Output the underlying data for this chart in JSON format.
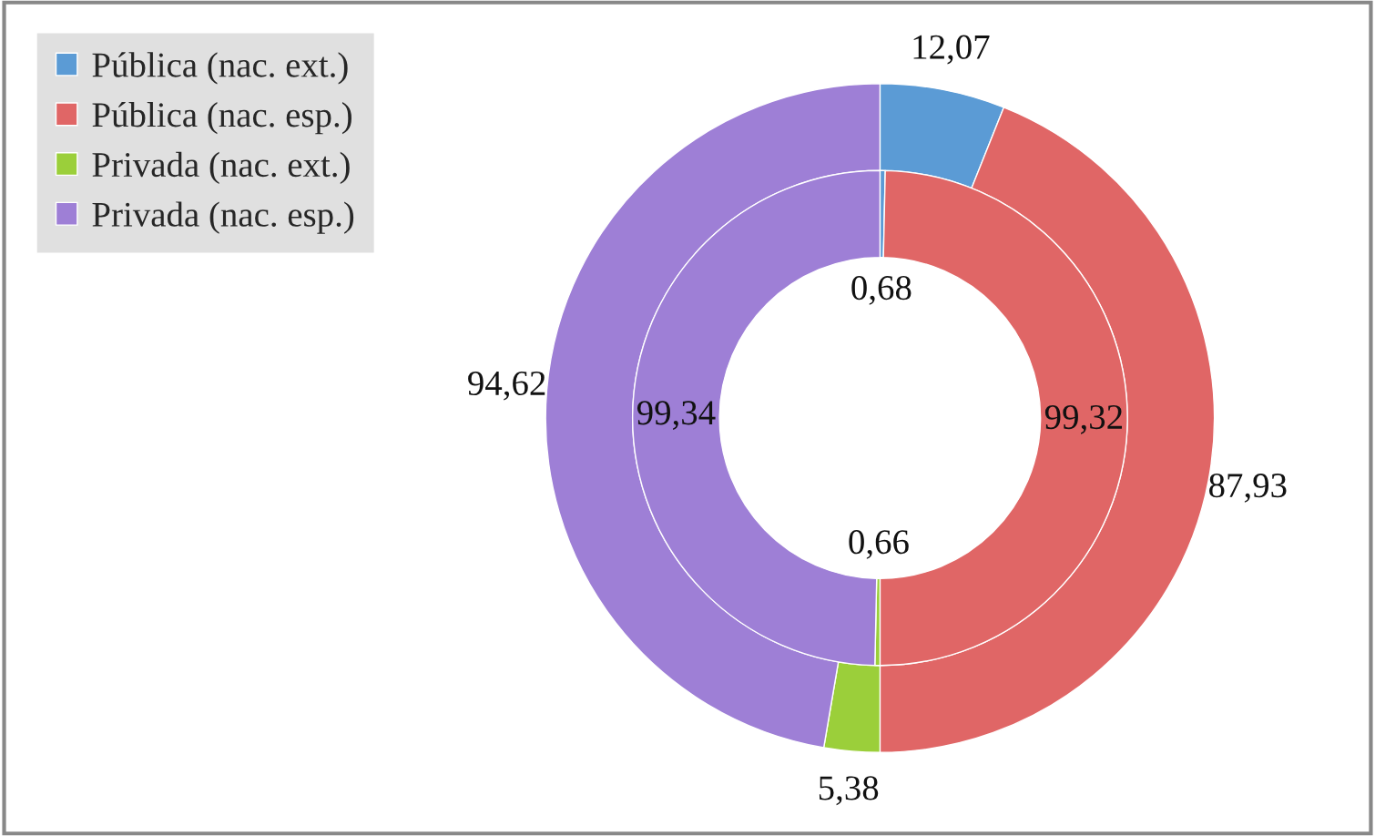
{
  "chart_data": {
    "type": "donut",
    "categories": [
      "Pública (nac. ext.)",
      "Pública (nac. esp.)",
      "Privada (nac. ext.)",
      "Privada (nac. esp.)"
    ],
    "colors": [
      "#5b9bd5",
      "#e06666",
      "#9bcf3a",
      "#9e7fd6"
    ],
    "series": [
      {
        "values": [
          12.07,
          87.93,
          5.38,
          94.62
        ],
        "value_labels": [
          "12,07",
          "87,93",
          "5,38",
          "94,62"
        ]
      },
      {
        "values": [
          0.68,
          99.32,
          0.66,
          99.34
        ],
        "value_labels": [
          "0,68",
          "99,32",
          "0,66",
          "99,34"
        ]
      }
    ],
    "legend": "top left"
  }
}
